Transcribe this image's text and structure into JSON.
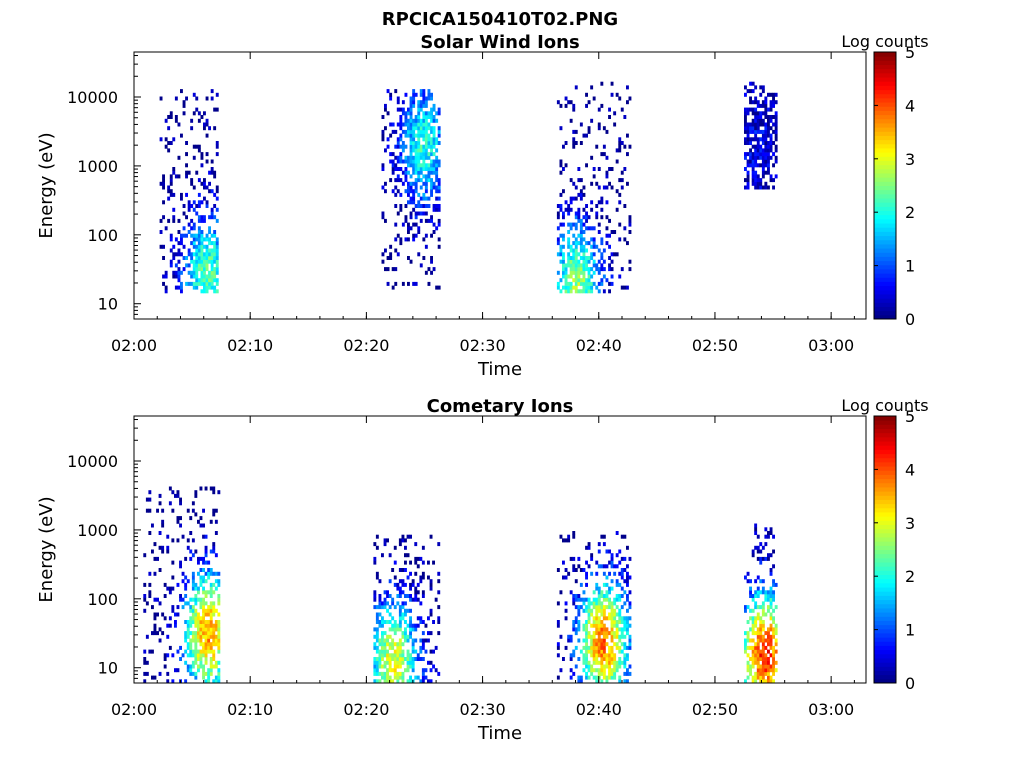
{
  "figure_title": "RPCICA150410T02.PNG",
  "chart_data": [
    {
      "type": "heatmap",
      "title": "Solar Wind Ions",
      "xlabel": "Time",
      "ylabel": "Energy (eV)",
      "yscale": "log",
      "ylim": [
        6,
        45000
      ],
      "xlim": [
        "02:00",
        "03:03"
      ],
      "x_ticks": [
        "02:00",
        "02:10",
        "02:20",
        "02:30",
        "02:40",
        "02:50",
        "03:00"
      ],
      "y_ticks": [
        "10",
        "100",
        "1000",
        "10000"
      ],
      "colorbar": {
        "label": "Log counts",
        "range": [
          0,
          5
        ],
        "ticks": [
          "0",
          "1",
          "2",
          "3",
          "4",
          "5"
        ],
        "colormap": "jet"
      },
      "bursts": [
        {
          "t_start_min": 2.2,
          "t_end_min": 7.2,
          "e_low_eV": 13,
          "e_high_eV": 12000,
          "peak_log_counts": 2.3,
          "peak_energy_eV": 25,
          "peak_t_min": 6.2
        },
        {
          "t_start_min": 21.3,
          "t_end_min": 26.2,
          "e_low_eV": 15,
          "e_high_eV": 13000,
          "peak_log_counts": 2.0,
          "peak_energy_eV": 1800,
          "peak_t_min": 24.8
        },
        {
          "t_start_min": 36.4,
          "t_end_min": 42.6,
          "e_low_eV": 13,
          "e_high_eV": 15000,
          "peak_log_counts": 2.6,
          "peak_energy_eV": 18,
          "peak_t_min": 38.0
        },
        {
          "t_start_min": 52.5,
          "t_end_min": 55.2,
          "e_low_eV": 450,
          "e_high_eV": 16000,
          "peak_log_counts": 0.5,
          "peak_energy_eV": 2000,
          "peak_t_min": 53.5
        }
      ]
    },
    {
      "type": "heatmap",
      "title": "Cometary Ions",
      "xlabel": "Time",
      "ylabel": "Energy (eV)",
      "yscale": "log",
      "ylim": [
        6,
        45000
      ],
      "xlim": [
        "02:00",
        "03:03"
      ],
      "x_ticks": [
        "02:00",
        "02:10",
        "02:20",
        "02:30",
        "02:40",
        "02:50",
        "03:00"
      ],
      "y_ticks": [
        "10",
        "100",
        "1000",
        "10000"
      ],
      "colorbar": {
        "label": "Log counts",
        "range": [
          0,
          5
        ],
        "ticks": [
          "0",
          "1",
          "2",
          "3",
          "4",
          "5"
        ],
        "colormap": "jet"
      },
      "bursts": [
        {
          "t_start_min": 0.8,
          "t_end_min": 7.3,
          "e_low_eV": 6,
          "e_high_eV": 4200,
          "peak_log_counts": 3.6,
          "peak_energy_eV": 30,
          "peak_t_min": 6.3
        },
        {
          "t_start_min": 20.6,
          "t_end_min": 26.2,
          "e_low_eV": 6,
          "e_high_eV": 800,
          "peak_log_counts": 3.0,
          "peak_energy_eV": 12,
          "peak_t_min": 22.2
        },
        {
          "t_start_min": 36.4,
          "t_end_min": 42.6,
          "e_low_eV": 6,
          "e_high_eV": 900,
          "peak_log_counts": 3.8,
          "peak_energy_eV": 22,
          "peak_t_min": 40.3
        },
        {
          "t_start_min": 52.5,
          "t_end_min": 55.2,
          "e_low_eV": 6,
          "e_high_eV": 1100,
          "peak_log_counts": 4.2,
          "peak_energy_eV": 15,
          "peak_t_min": 54.2
        }
      ]
    }
  ]
}
